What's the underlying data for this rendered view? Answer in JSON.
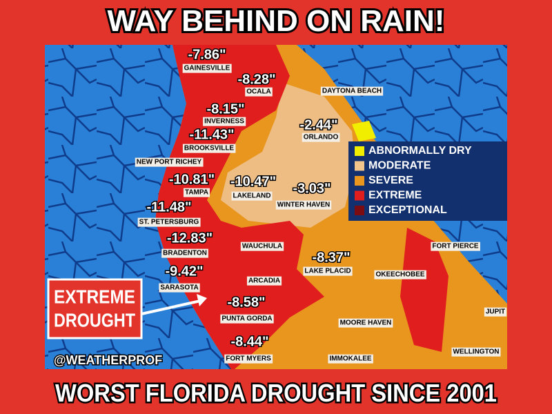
{
  "title": "WAY BEHIND ON RAIN!",
  "footer": "WORST FLORIDA DROUGHT SINCE 2001",
  "handle": "@WEATHERPROF",
  "callout": {
    "lines": [
      "EXTREME",
      "DROUGHT"
    ]
  },
  "legend": [
    {
      "label": "ABNORMALLY DRY",
      "color": "#f2ee00"
    },
    {
      "label": "MODERATE",
      "color": "#f0c48a"
    },
    {
      "label": "SEVERE",
      "color": "#e8961e"
    },
    {
      "label": "EXTREME",
      "color": "#e01e1e"
    },
    {
      "label": "EXCEPTIONAL",
      "color": "#7a0c12"
    }
  ],
  "locations": [
    {
      "name": "GAINESVILLE",
      "deficit": "-7.86\""
    },
    {
      "name": "OCALA",
      "deficit": "-8.28\""
    },
    {
      "name": "INVERNESS",
      "deficit": "-8.15\""
    },
    {
      "name": "BROOKSVILLE",
      "deficit": "-11.43\""
    },
    {
      "name": "ORLANDO",
      "deficit": "-2.44\""
    },
    {
      "name": "TAMPA",
      "deficit": "-10.81\""
    },
    {
      "name": "LAKELAND",
      "deficit": "-10.47\""
    },
    {
      "name": "WINTER HAVEN",
      "deficit": "-3.03\""
    },
    {
      "name": "ST. PETERSBURG",
      "deficit": "-11.48\""
    },
    {
      "name": "BRADENTON",
      "deficit": "-12.83\""
    },
    {
      "name": "SARASOTA",
      "deficit": "-9.42\""
    },
    {
      "name": "PUNTA GORDA",
      "deficit": "-8.58\""
    },
    {
      "name": "LAKE PLACID",
      "deficit": "-8.37\""
    },
    {
      "name": "FORT MYERS",
      "deficit": "-8.44\""
    }
  ],
  "places": [
    "DAYTONA BEACH",
    "NEW PORT RICHEY",
    "WAUCHULA",
    "ARCADIA",
    "OKEECHOBEE",
    "FORT PIERCE",
    "MOORE HAVEN",
    "JUPIT",
    "IMMOKALEE",
    "WELLINGTON"
  ]
}
